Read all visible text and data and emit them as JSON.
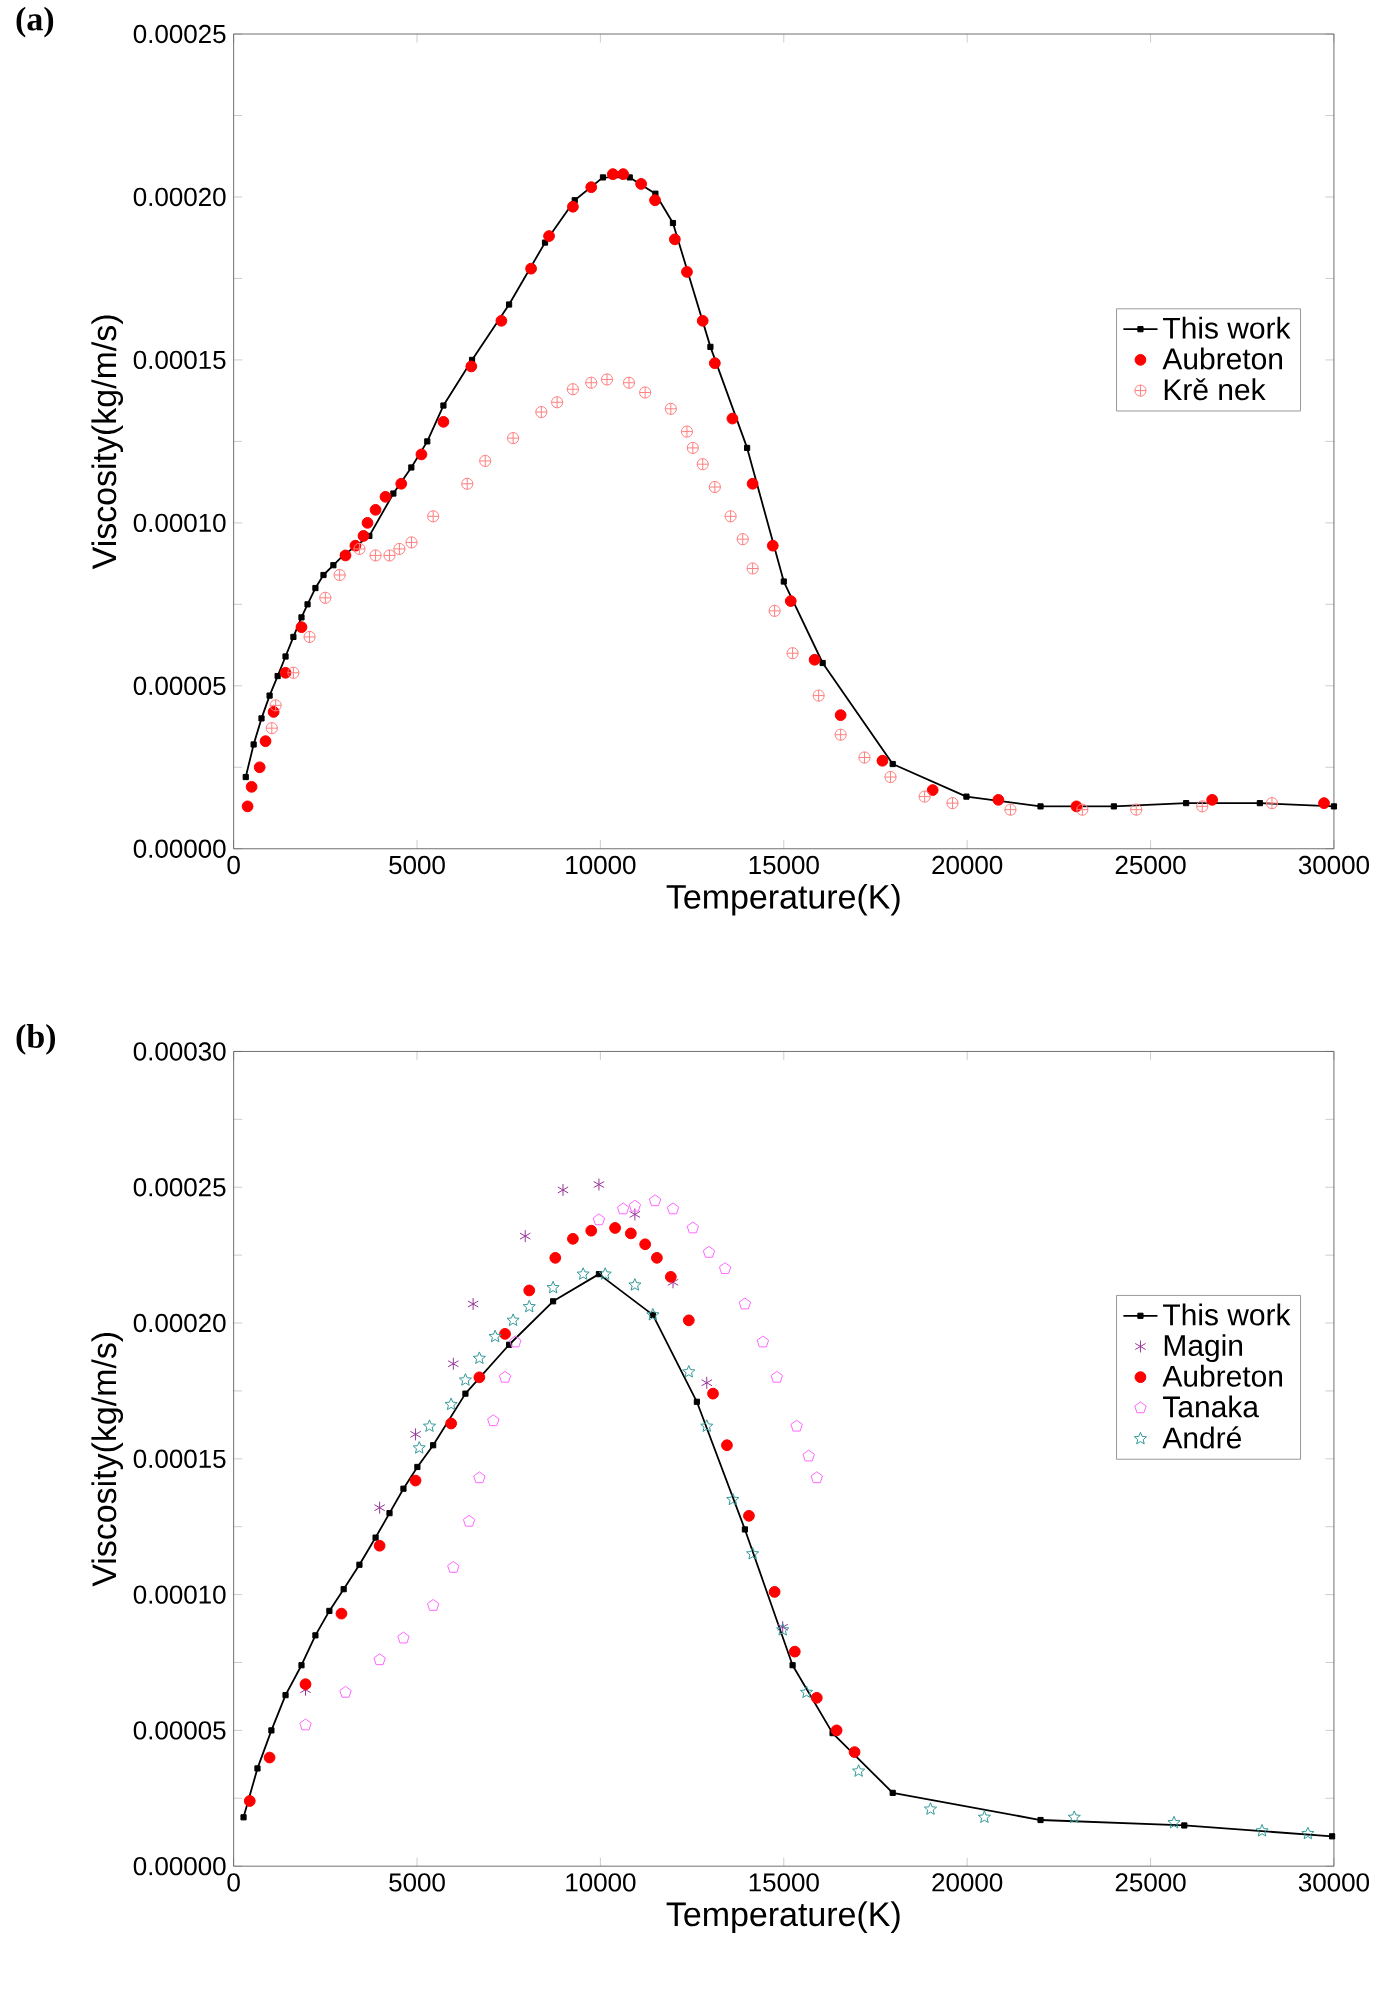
{
  "chart_data": [
    {
      "type": "scatter",
      "title": "(a)",
      "xlabel": "Temperature(K)",
      "ylabel": "Viscosity(kg/m/s)",
      "legend": "right",
      "xlim": [
        0,
        30000
      ],
      "ylim": [
        0,
        0.00025
      ],
      "xticks": [
        0,
        5000,
        10000,
        15000,
        20000,
        25000,
        30000
      ],
      "yticks": [
        {
          "value": 0,
          "label": "0.00000"
        },
        {
          "value": 2.5e-05,
          "label": null
        },
        {
          "value": 5e-05,
          "label": "0.00005"
        },
        {
          "value": 7.5e-05,
          "label": null
        },
        {
          "value": 0.0001,
          "label": "0.00010"
        },
        {
          "value": 0.000125,
          "label": null
        },
        {
          "value": 0.00015,
          "label": "0.00015"
        },
        {
          "value": 0.000175,
          "label": null
        },
        {
          "value": 0.0002,
          "label": "0.00020"
        },
        {
          "value": 0.000225,
          "label": null
        },
        {
          "value": 0.00025,
          "label": "0.00025"
        }
      ],
      "series": [
        {
          "name": "This work",
          "type": "line",
          "color": "#000000",
          "marker": "square",
          "line_style": "solid",
          "x": [
            330,
            545,
            760,
            980,
            1200,
            1415,
            1630,
            1850,
            2015,
            2230,
            2450,
            2720,
            2990,
            3700,
            4355,
            4845,
            5280,
            5720,
            6500,
            7510,
            8490,
            9300,
            10070,
            10800,
            11500,
            11978,
            13000,
            14000,
            15000,
            16060,
            17970,
            19980,
            22000,
            24000,
            25970,
            27980,
            30000
          ],
          "values": [
            2.2e-05,
            3.2e-05,
            4e-05,
            4.7e-05,
            5.3e-05,
            5.9e-05,
            6.5e-05,
            7.1e-05,
            7.5e-05,
            8e-05,
            8.4e-05,
            8.7e-05,
            9e-05,
            9.6e-05,
            0.000109,
            0.000117,
            0.000125,
            0.000136,
            0.00015,
            0.000167,
            0.000186,
            0.000199,
            0.000206,
            0.000206,
            0.000201,
            0.000192,
            0.000154,
            0.000123,
            8.2e-05,
            5.7e-05,
            2.6e-05,
            1.6e-05,
            1.3e-05,
            1.3e-05,
            1.4e-05,
            1.4e-05,
            1.3e-05
          ]
        },
        {
          "name": "Aubreton",
          "color": "#ff0000",
          "marker": "circle",
          "x": [
            380,
            490,
            710,
            870,
            1090,
            1415,
            1850,
            3050,
            3320,
            3540,
            3650,
            3870,
            4140,
            4570,
            5120,
            5720,
            6480,
            7300,
            8110,
            8600,
            9250,
            9750,
            10340,
            10620,
            11110,
            11490,
            12030,
            12360,
            12790,
            13120,
            13600,
            14150,
            14700,
            15190,
            15840,
            16550,
            17690,
            19060,
            20850,
            22980,
            26680,
            29730
          ],
          "values": [
            1.3e-05,
            1.9e-05,
            2.5e-05,
            3.3e-05,
            4.2e-05,
            5.4e-05,
            6.8e-05,
            9e-05,
            9.3e-05,
            9.6e-05,
            0.0001,
            0.000104,
            0.000108,
            0.000112,
            0.000121,
            0.000131,
            0.000148,
            0.000162,
            0.000178,
            0.000188,
            0.000197,
            0.000203,
            0.000207,
            0.000207,
            0.000204,
            0.000199,
            0.000187,
            0.000177,
            0.000162,
            0.000149,
            0.000132,
            0.000112,
            9.3e-05,
            7.6e-05,
            5.8e-05,
            4.1e-05,
            2.7e-05,
            1.8e-05,
            1.5e-05,
            1.3e-05,
            1.5e-05,
            1.4e-05
          ]
        },
        {
          "name": "Krě nek",
          "color": "#ff8080",
          "x": [
            1040,
            1145,
            1630,
            2070,
            2500,
            2890,
            3430,
            3870,
            4250,
            4520,
            4850,
            5440,
            6370,
            6860,
            7620,
            8390,
            8820,
            9250,
            9750,
            10180,
            10780,
            11220,
            11920,
            12360,
            12520,
            12790,
            13120,
            13550,
            13880,
            14150,
            14750,
            15240,
            15950,
            16550,
            17200,
            17910,
            18840,
            19600,
            21180,
            23140,
            24610,
            26410,
            28310
          ],
          "values": [
            3.7e-05,
            4.4e-05,
            5.4e-05,
            6.5e-05,
            7.7e-05,
            8.4e-05,
            9.2e-05,
            9e-05,
            9e-05,
            9.2e-05,
            9.4e-05,
            0.000102,
            0.000112,
            0.000119,
            0.000126,
            0.000134,
            0.000137,
            0.000141,
            0.000143,
            0.000144,
            0.000143,
            0.00014,
            0.000135,
            0.000128,
            0.000123,
            0.000118,
            0.000111,
            0.000102,
            9.5e-05,
            8.6e-05,
            7.3e-05,
            6e-05,
            4.7e-05,
            3.5e-05,
            2.8e-05,
            2.2e-05,
            1.6e-05,
            1.4e-05,
            1.2e-05,
            1.2e-05,
            1.2e-05,
            1.3e-05,
            1.4e-05
          ]
        }
      ]
    },
    {
      "type": "scatter",
      "title": "(b)",
      "xlabel": "Temperature(K)",
      "ylabel": "Viscosity(kg/m/s)",
      "legend": "right",
      "xlim": [
        0,
        30000
      ],
      "ylim": [
        0,
        0.0003
      ],
      "xticks": [
        0,
        5000,
        10000,
        15000,
        20000,
        25000,
        30000
      ],
      "yticks": [
        {
          "value": 0,
          "label": "0.00000"
        },
        {
          "value": 2.5e-05,
          "label": null
        },
        {
          "value": 5e-05,
          "label": "0.00005"
        },
        {
          "value": 7.5e-05,
          "label": null
        },
        {
          "value": 0.0001,
          "label": "0.00010"
        },
        {
          "value": 0.000125,
          "label": null
        },
        {
          "value": 0.00015,
          "label": "0.00015"
        },
        {
          "value": 0.000175,
          "label": null
        },
        {
          "value": 0.0002,
          "label": "0.00020"
        },
        {
          "value": 0.000225,
          "label": null
        },
        {
          "value": 0.00025,
          "label": "0.00025"
        },
        {
          "value": 0.000275,
          "label": null
        },
        {
          "value": 0.0003,
          "label": "0.00030"
        }
      ],
      "series": [
        {
          "name": "This work",
          "type": "line",
          "color": "#000000",
          "marker": "square",
          "line_style": "solid",
          "x": [
            270,
            650,
            1030,
            1415,
            1850,
            2230,
            2610,
            3000,
            3430,
            3870,
            4250,
            4630,
            5010,
            5440,
            6320,
            7510,
            8710,
            9960,
            11430,
            12630,
            13940,
            15240,
            16330,
            17970,
            22000,
            25920,
            29950
          ],
          "values": [
            1.8e-05,
            3.6e-05,
            5e-05,
            6.3e-05,
            7.4e-05,
            8.5e-05,
            9.4e-05,
            0.000102,
            0.000111,
            0.000121,
            0.00013,
            0.000139,
            0.000147,
            0.000155,
            0.000174,
            0.000192,
            0.000208,
            0.000218,
            0.000203,
            0.000171,
            0.000124,
            7.4e-05,
            4.9e-05,
            2.7e-05,
            1.7e-05,
            1.5e-05,
            1.1e-05
          ]
        },
        {
          "name": "Magin",
          "color": "#993399",
          "marker": "cross",
          "x": [
            1960,
            3980,
            4960,
            5990,
            6530,
            7950,
            8980,
            9960,
            10940,
            11980,
            12900,
            14970
          ],
          "values": [
            6.5e-05,
            0.000132,
            0.000159,
            0.000185,
            0.000207,
            0.000232,
            0.000249,
            0.000251,
            0.00024,
            0.000215,
            0.000178,
            8.8e-05
          ]
        },
        {
          "name": "Aubreton",
          "color": "#ff0000",
          "marker": "circle",
          "x": [
            440,
            980,
            1960,
            2940,
            3980,
            4960,
            5930,
            6700,
            7400,
            8060,
            8770,
            9250,
            9750,
            10400,
            10830,
            11220,
            11540,
            11920,
            12410,
            13070,
            13450,
            14050,
            14750,
            15300,
            15900,
            16440,
            16930
          ],
          "values": [
            2.4e-05,
            4e-05,
            6.7e-05,
            9.3e-05,
            0.000118,
            0.000142,
            0.000163,
            0.00018,
            0.000196,
            0.000212,
            0.000224,
            0.000231,
            0.000234,
            0.000235,
            0.000233,
            0.000229,
            0.000224,
            0.000217,
            0.000201,
            0.000174,
            0.000155,
            0.000129,
            0.000101,
            7.9e-05,
            6.2e-05,
            5e-05,
            4.2e-05
          ]
        },
        {
          "name": "Tanaka",
          "color": "#ff66ff",
          "x": [
            1960,
            3050,
            3980,
            4630,
            5440,
            5990,
            6420,
            6700,
            7080,
            7400,
            7680,
            9960,
            10620,
            10940,
            11490,
            11980,
            12520,
            12960,
            13400,
            13940,
            14430,
            14810,
            15350,
            15680,
            15900
          ],
          "values": [
            5.2e-05,
            6.4e-05,
            7.6e-05,
            8.4e-05,
            9.6e-05,
            0.00011,
            0.000127,
            0.000143,
            0.000164,
            0.00018,
            0.000193,
            0.000238,
            0.000242,
            0.000243,
            0.000245,
            0.000242,
            0.000235,
            0.000226,
            0.00022,
            0.000207,
            0.000193,
            0.00018,
            0.000162,
            0.000151,
            0.000143
          ]
        },
        {
          "name": "André",
          "color": "#339999",
          "marker": "star",
          "x": [
            5060,
            5340,
            5930,
            6320,
            6700,
            7130,
            7620,
            8060,
            8710,
            9530,
            10130,
            10940,
            11430,
            12410,
            12900,
            13610,
            14150,
            14970,
            15620,
            17040,
            19000,
            20470,
            22920,
            25640,
            28040,
            29290
          ],
          "values": [
            0.000154,
            0.000162,
            0.00017,
            0.000179,
            0.000187,
            0.000195,
            0.000201,
            0.000206,
            0.000213,
            0.000218,
            0.000218,
            0.000214,
            0.000203,
            0.000182,
            0.000162,
            0.000135,
            0.000115,
            8.7e-05,
            6.4e-05,
            3.5e-05,
            2.1e-05,
            1.8e-05,
            1.8e-05,
            1.6e-05,
            1.3e-05,
            1.2e-05
          ]
        }
      ]
    }
  ]
}
